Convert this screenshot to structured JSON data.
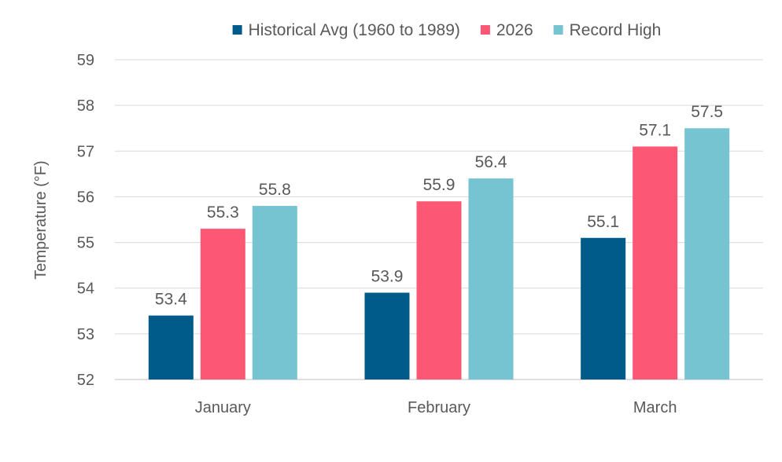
{
  "chart_data": {
    "type": "bar",
    "title": "",
    "xlabel": "",
    "ylabel": "Temperature  (°F)",
    "categories": [
      "January",
      "February",
      "March"
    ],
    "series": [
      {
        "name": "Historical Avg (1960 to 1989)",
        "color": "#005b8a",
        "values": [
          53.4,
          53.9,
          55.1
        ]
      },
      {
        "name": "2026",
        "color": "#fc5774",
        "values": [
          55.3,
          55.9,
          57.1
        ]
      },
      {
        "name": "Record High",
        "color": "#76c3d2",
        "values": [
          55.8,
          56.4,
          57.5
        ]
      }
    ],
    "ylim": [
      52,
      59
    ],
    "yticks": [
      52,
      53,
      54,
      55,
      56,
      57,
      58,
      59
    ],
    "grid": true,
    "legend": "top-center",
    "data_labels": true
  }
}
